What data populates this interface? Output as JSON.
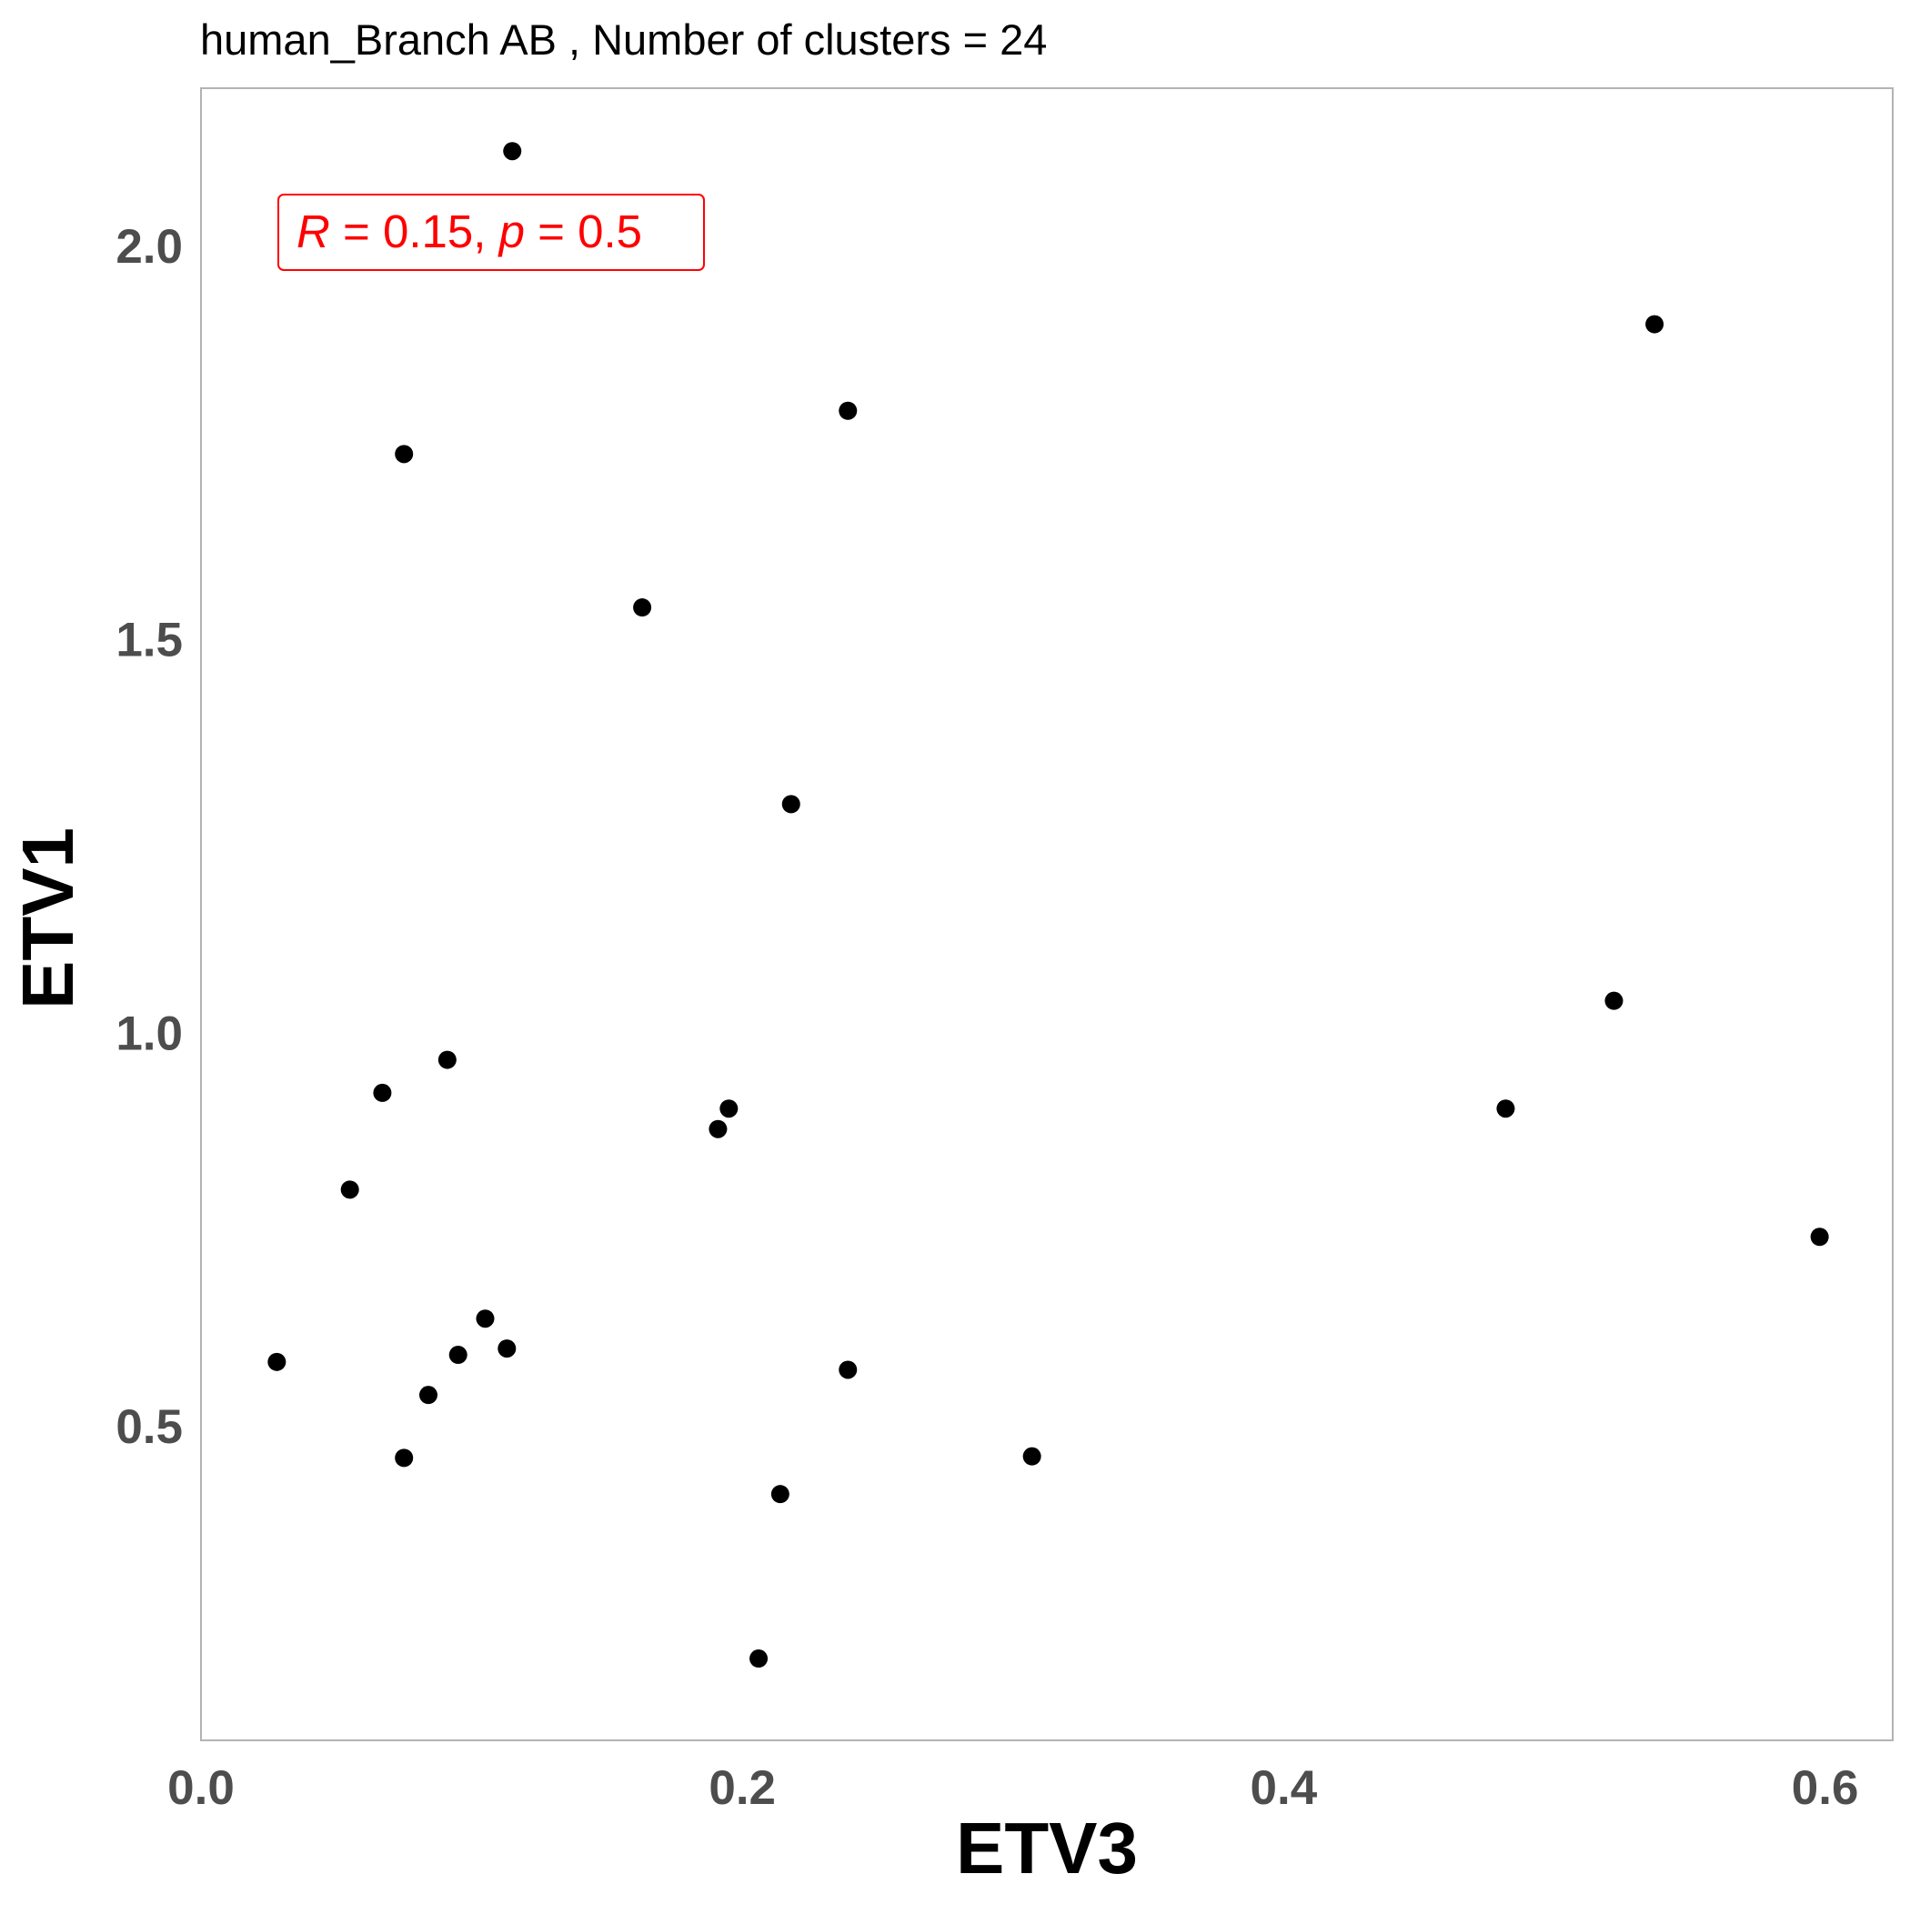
{
  "chart_data": {
    "type": "scatter",
    "title": "human_Branch AB , Number of clusters =  24",
    "xlabel": "ETV3",
    "ylabel": "ETV1",
    "xlim": [
      0.0,
      0.625
    ],
    "ylim": [
      0.1,
      2.2
    ],
    "x_ticks": [
      0.0,
      0.2,
      0.4,
      0.6
    ],
    "x_tick_labels": [
      "0.0",
      "0.2",
      "0.4",
      "0.6"
    ],
    "y_ticks": [
      0.5,
      1.0,
      1.5,
      2.0
    ],
    "y_tick_labels": [
      "0.5",
      "1.0",
      "1.5",
      "2.0"
    ],
    "grid": false,
    "annotation": {
      "r_symbol": "R",
      "r_text": " = 0.15, ",
      "p_symbol": "p",
      "p_text": " = 0.5",
      "color": "#FF0000"
    },
    "point_color": "#000000",
    "points": [
      {
        "x": 0.115,
        "y": 2.12
      },
      {
        "x": 0.537,
        "y": 1.9
      },
      {
        "x": 0.239,
        "y": 1.79
      },
      {
        "x": 0.075,
        "y": 1.735
      },
      {
        "x": 0.163,
        "y": 1.54
      },
      {
        "x": 0.218,
        "y": 1.29
      },
      {
        "x": 0.522,
        "y": 1.04
      },
      {
        "x": 0.091,
        "y": 0.965
      },
      {
        "x": 0.067,
        "y": 0.923
      },
      {
        "x": 0.195,
        "y": 0.903
      },
      {
        "x": 0.191,
        "y": 0.877
      },
      {
        "x": 0.482,
        "y": 0.903
      },
      {
        "x": 0.055,
        "y": 0.8
      },
      {
        "x": 0.598,
        "y": 0.74
      },
      {
        "x": 0.105,
        "y": 0.636
      },
      {
        "x": 0.113,
        "y": 0.598
      },
      {
        "x": 0.095,
        "y": 0.59
      },
      {
        "x": 0.028,
        "y": 0.581
      },
      {
        "x": 0.239,
        "y": 0.571
      },
      {
        "x": 0.084,
        "y": 0.539
      },
      {
        "x": 0.075,
        "y": 0.459
      },
      {
        "x": 0.307,
        "y": 0.461
      },
      {
        "x": 0.214,
        "y": 0.413
      },
      {
        "x": 0.206,
        "y": 0.204
      }
    ]
  }
}
